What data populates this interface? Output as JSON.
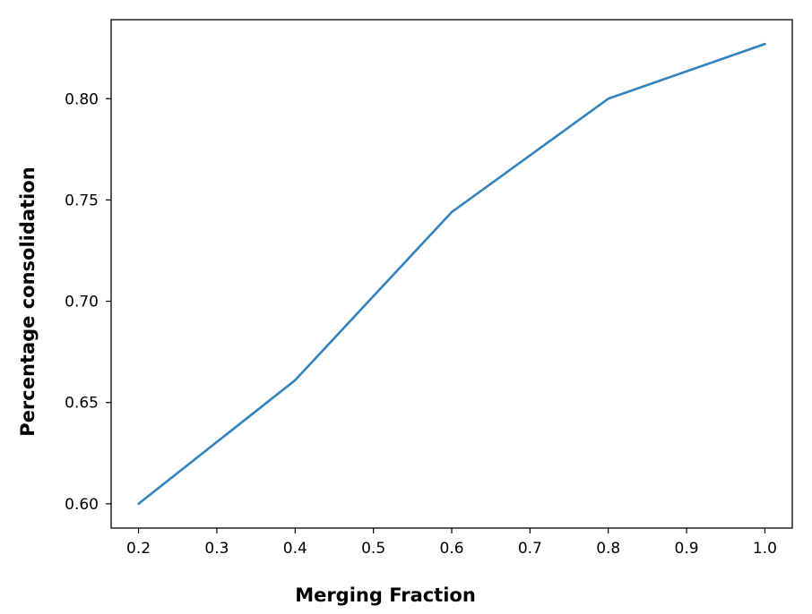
{
  "chart_data": {
    "type": "line",
    "title": "",
    "xlabel": "Merging Fraction",
    "ylabel": "Percentage consolidation",
    "x": [
      0.2,
      0.4,
      0.6,
      0.8,
      1.0
    ],
    "series": [
      {
        "values": [
          0.6,
          0.661,
          0.744,
          0.8,
          0.827
        ],
        "color": "#3182bd"
      }
    ],
    "xlim": [
      0.165,
      1.035
    ],
    "ylim": [
      0.588,
      0.839
    ],
    "xticks": [
      0.2,
      0.3,
      0.4,
      0.5,
      0.6,
      0.7,
      0.8,
      0.9,
      1.0
    ],
    "xtick_labels": [
      "0.2",
      "0.3",
      "0.4",
      "0.5",
      "0.6",
      "0.7",
      "0.8",
      "0.9",
      "1.0"
    ],
    "yticks": [
      0.6,
      0.65,
      0.7,
      0.75,
      0.8
    ],
    "ytick_labels": [
      "0.60",
      "0.65",
      "0.70",
      "0.75",
      "0.80"
    ],
    "grid": false,
    "legend": "none"
  }
}
